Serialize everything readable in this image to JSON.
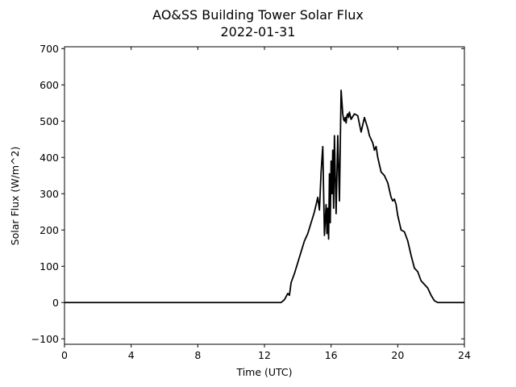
{
  "chart_data": {
    "type": "line",
    "title": "AO&SS Building Tower Solar Flux",
    "subtitle": "2022-01-31",
    "xlabel": "Time (UTC)",
    "ylabel": "Solar Flux (W/m^2)",
    "xlim": [
      0,
      24
    ],
    "ylim": [
      -115,
      705
    ],
    "x_ticks": [
      0,
      4,
      8,
      12,
      16,
      20,
      24
    ],
    "y_ticks": [
      -100,
      0,
      100,
      200,
      300,
      400,
      500,
      600,
      700
    ],
    "grid": false,
    "legend": "none",
    "colors": {
      "line": "#000000"
    },
    "series": [
      {
        "x": [
          0,
          13.0,
          13.2,
          13.4,
          13.5,
          13.6,
          13.8,
          14.0,
          14.2,
          14.4,
          14.6,
          14.8,
          15.0,
          15.2,
          15.3,
          15.4,
          15.5,
          15.6,
          15.7,
          15.75,
          15.8,
          15.85,
          15.9,
          15.95,
          16.0,
          16.05,
          16.1,
          16.15,
          16.2,
          16.3,
          16.4,
          16.5,
          16.6,
          16.7,
          16.75,
          16.8,
          16.85,
          16.9,
          16.95,
          17.0,
          17.05,
          17.1,
          17.2,
          17.4,
          17.6,
          17.8,
          18.0,
          18.2,
          18.3,
          18.4,
          18.5,
          18.6,
          18.7,
          18.8,
          18.9,
          19.0,
          19.2,
          19.4,
          19.5,
          19.6,
          19.7,
          19.8,
          19.9,
          20.0,
          20.2,
          20.4,
          20.6,
          20.8,
          21.0,
          21.2,
          21.4,
          21.6,
          21.8,
          22.0,
          22.2,
          22.4,
          22.6,
          22.8,
          23.0,
          23.2,
          23.4,
          24
        ],
        "y": [
          0,
          0,
          8,
          25,
          20,
          55,
          80,
          110,
          140,
          170,
          190,
          220,
          250,
          290,
          255,
          360,
          430,
          185,
          270,
          190,
          260,
          175,
          355,
          220,
          390,
          300,
          420,
          260,
          460,
          245,
          460,
          280,
          585,
          520,
          505,
          500,
          510,
          495,
          515,
          520,
          510,
          525,
          505,
          520,
          515,
          470,
          510,
          480,
          460,
          450,
          440,
          420,
          430,
          400,
          380,
          360,
          350,
          330,
          310,
          290,
          280,
          285,
          270,
          240,
          200,
          195,
          170,
          130,
          95,
          85,
          60,
          50,
          40,
          20,
          5,
          0,
          0,
          0,
          0,
          0,
          0,
          0
        ]
      }
    ]
  }
}
